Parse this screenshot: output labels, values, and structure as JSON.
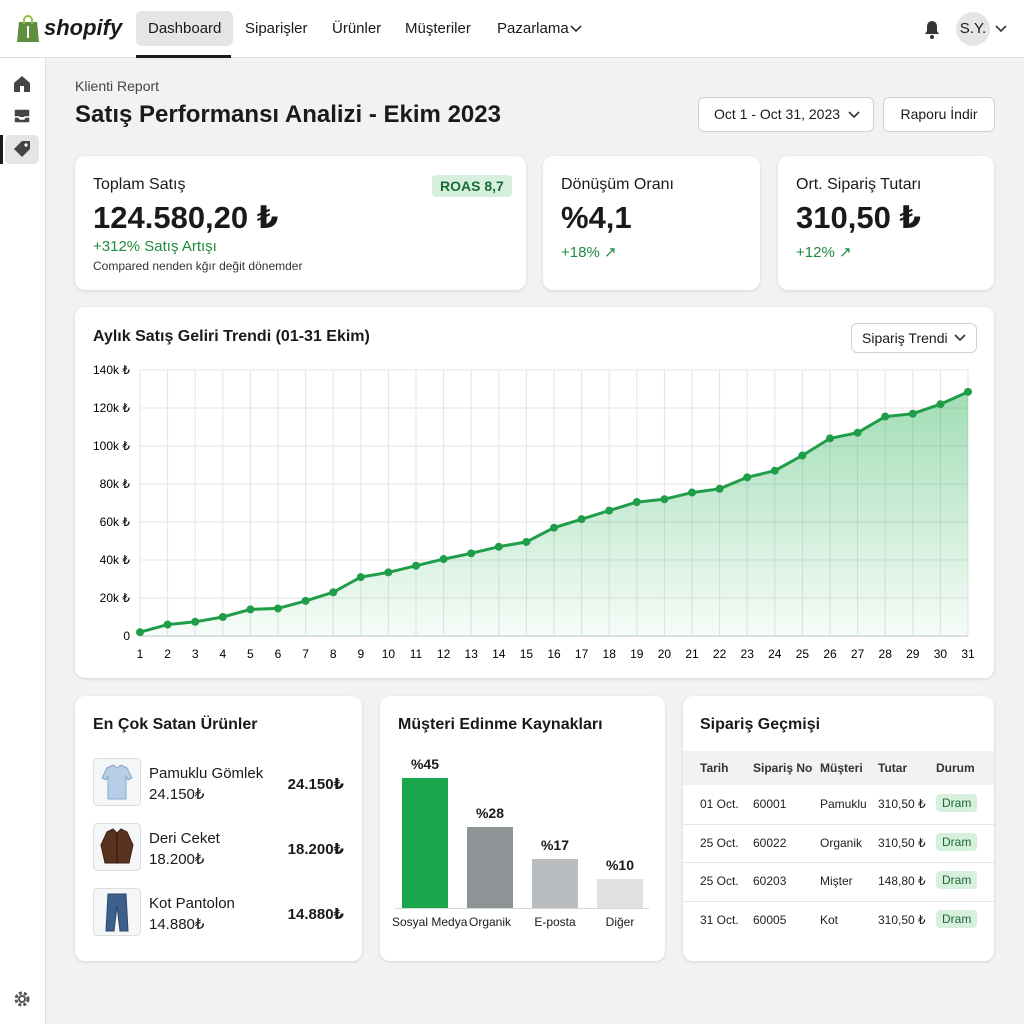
{
  "nav": {
    "brand": "shopify",
    "tabs": [
      "Dashboard",
      "Siparişler",
      "Ürünler",
      "Müşteriler",
      "Pazarlama"
    ],
    "user": "S.Y."
  },
  "header": {
    "eyebrow": "Klienti Report",
    "title": "Satış Performansı Analizi - Ekim 2023",
    "date_range": "Oct 1 - Oct 31, 2023",
    "download": "Raporu İndir"
  },
  "kpis": [
    {
      "label": "Toplam Satış",
      "value": "124.580,20 ₺",
      "badge": "ROAS 8,7",
      "change": "+312% Satış Artışı",
      "note": "Compared nenden kğır değit dönemder"
    },
    {
      "label": "Dönüşüm Oranı",
      "value": "%4,1",
      "change": "+18% ↗"
    },
    {
      "label": "Ort. Sipariş Tutarı",
      "value": "310,50 ₺",
      "change": "+12% ↗"
    }
  ],
  "trend_control": "Sipariş Trendi",
  "chart_data": [
    {
      "type": "line",
      "title": "Aylık Satış Geliri Trendi (01-31 Ekim)",
      "color": "#1f9d48",
      "grid": true,
      "x": [
        1,
        2,
        3,
        4,
        5,
        6,
        7,
        8,
        9,
        10,
        11,
        12,
        13,
        14,
        15,
        16,
        17,
        18,
        19,
        20,
        21,
        22,
        23,
        24,
        25,
        26,
        27,
        28,
        29,
        30,
        31
      ],
      "values": [
        2000,
        6000,
        7500,
        10000,
        14000,
        14500,
        18500,
        23000,
        31000,
        33500,
        37000,
        40500,
        43500,
        47000,
        49500,
        57000,
        61500,
        66000,
        70500,
        72000,
        75500,
        77500,
        83500,
        87000,
        95000,
        104000,
        107000,
        115500,
        117000,
        122000,
        128500
      ],
      "xlim": [
        1,
        31
      ],
      "xticks": [
        1,
        2,
        3,
        4,
        5,
        6,
        7,
        8,
        9,
        10,
        11,
        12,
        13,
        14,
        15,
        16,
        17,
        18,
        19,
        20,
        21,
        22,
        23,
        24,
        25,
        26,
        27,
        28,
        29,
        30,
        31
      ],
      "ylim": [
        0,
        140000
      ],
      "yticks": [
        0,
        {
          "value": 20000,
          "label": "20k ₺"
        },
        {
          "value": 40000,
          "label": "40k ₺"
        },
        {
          "value": 60000,
          "label": "60k ₺"
        },
        {
          "value": 80000,
          "label": "80k ₺"
        },
        {
          "value": 100000,
          "label": "100k ₺"
        },
        {
          "value": 120000,
          "label": "120k ₺"
        },
        {
          "value": 140000,
          "label": "140k ₺"
        }
      ]
    },
    {
      "type": "bar",
      "title": "Müşteri Edinme Kaynakları",
      "categories": [
        "Sosyal Medya",
        "Organik",
        "E-posta",
        "Diğer"
      ],
      "values": [
        45,
        28,
        17,
        10
      ],
      "value_labels": [
        "%45",
        "%28",
        "%17",
        "%10"
      ],
      "colors": [
        "#1aa64a",
        "#8e9396",
        "#b9bdbf",
        "#dfe1e2"
      ]
    }
  ],
  "products": {
    "title": "En Çok Satan Ürünler",
    "items": [
      {
        "name": "Pamuklu Gömlek",
        "price": "24.150₺",
        "total": "24.150₺"
      },
      {
        "name": "Deri Ceket",
        "price": "18.200₺",
        "total": "18.200₺"
      },
      {
        "name": "Kot Pantolon",
        "price": "14.880₺",
        "total": "14.880₺"
      }
    ]
  },
  "orders": {
    "title": "Sipariş Geçmişi",
    "columns": [
      "Tarih",
      "Sipariş No",
      "Müşteri",
      "Tutar",
      "Durum"
    ],
    "rows": [
      [
        "01 Oct.",
        "60001",
        "Pamuklu",
        "310,50 ₺",
        "Dram"
      ],
      [
        "25 Oct.",
        "60022",
        "Organik",
        "310,50 ₺",
        "Dram"
      ],
      [
        "25 Oct.",
        "60203",
        "Mişter",
        "148,80 ₺",
        "Dram"
      ],
      [
        "31 Oct.",
        "60005",
        "Kot",
        "310,50 ₺",
        "Dram"
      ]
    ]
  }
}
